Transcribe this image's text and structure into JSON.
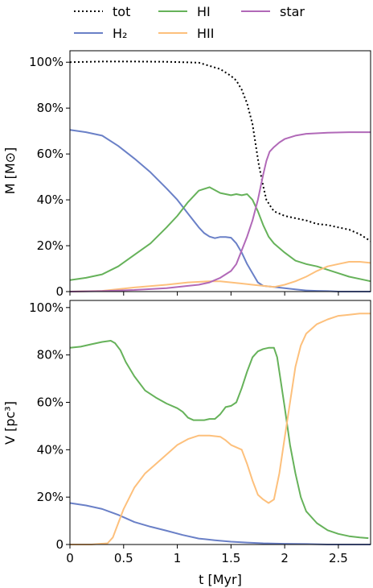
{
  "chart_data": [
    {
      "type": "line",
      "ylabel": "M  [M⊙]",
      "xlim": [
        0,
        2.8
      ],
      "ylim": [
        0,
        105
      ],
      "yticks": [
        "0",
        "20%",
        "40%",
        "60%",
        "80%",
        "100%"
      ],
      "series": [
        {
          "name": "tot",
          "color": "#000000",
          "dash": "dotted",
          "x": [
            0,
            0.3,
            0.6,
            0.9,
            1.2,
            1.4,
            1.5,
            1.55,
            1.6,
            1.65,
            1.7,
            1.73,
            1.76,
            1.8,
            1.83,
            1.87,
            1.9,
            2.0,
            2.1,
            2.2,
            2.3,
            2.4,
            2.5,
            2.6,
            2.7,
            2.8
          ],
          "y": [
            100,
            100.3,
            100.3,
            100.2,
            99.8,
            97,
            94,
            92,
            88,
            82,
            73,
            64,
            55,
            46,
            40,
            37,
            35,
            33,
            32,
            31,
            29.5,
            29,
            28,
            27,
            25,
            22
          ]
        },
        {
          "name": "H2",
          "color": "#6a80c7",
          "x": [
            0,
            0.15,
            0.3,
            0.45,
            0.6,
            0.75,
            0.9,
            1.0,
            1.1,
            1.2,
            1.25,
            1.3,
            1.35,
            1.4,
            1.45,
            1.5,
            1.55,
            1.6,
            1.65,
            1.7,
            1.75,
            1.8,
            1.9,
            2.0,
            2.1,
            2.2,
            2.3,
            2.4,
            2.5,
            2.6,
            2.7,
            2.8
          ],
          "y": [
            70.5,
            69.5,
            68,
            63.5,
            58,
            52,
            45,
            40,
            34,
            28,
            25.5,
            24,
            23.3,
            23.8,
            23.8,
            23.5,
            21,
            17,
            12,
            8,
            4,
            2.5,
            2,
            1.5,
            1,
            0.5,
            0.3,
            0.2,
            0,
            0,
            0,
            0
          ]
        },
        {
          "name": "HI",
          "color": "#66b25a",
          "x": [
            0,
            0.15,
            0.3,
            0.45,
            0.6,
            0.75,
            0.9,
            1.0,
            1.1,
            1.2,
            1.3,
            1.4,
            1.5,
            1.55,
            1.6,
            1.65,
            1.7,
            1.75,
            1.8,
            1.85,
            1.9,
            2.0,
            2.1,
            2.2,
            2.3,
            2.4,
            2.5,
            2.6,
            2.7,
            2.8
          ],
          "y": [
            5,
            6,
            7.5,
            11,
            16,
            21,
            28,
            33,
            39,
            44,
            45.5,
            43,
            42,
            42.5,
            42,
            42.5,
            40,
            35,
            29,
            24,
            21,
            17,
            13.5,
            12,
            11,
            9.5,
            8,
            6.5,
            5.5,
            4.5
          ]
        },
        {
          "name": "HII",
          "color": "#fdc07c",
          "x": [
            0,
            0.3,
            0.6,
            0.9,
            1.1,
            1.3,
            1.4,
            1.5,
            1.6,
            1.7,
            1.8,
            1.9,
            2.0,
            2.1,
            2.2,
            2.3,
            2.4,
            2.5,
            2.6,
            2.7,
            2.8
          ],
          "y": [
            0,
            0.3,
            1.8,
            3,
            4,
            4.5,
            4.5,
            4,
            3.5,
            3,
            2.5,
            2,
            3,
            4.5,
            6.5,
            9,
            11,
            12,
            13,
            13,
            12.5
          ]
        },
        {
          "name": "star",
          "color": "#b169b8",
          "x": [
            0,
            0.3,
            0.6,
            0.9,
            1.1,
            1.2,
            1.3,
            1.4,
            1.5,
            1.55,
            1.6,
            1.65,
            1.7,
            1.75,
            1.8,
            1.83,
            1.86,
            1.9,
            1.95,
            2.0,
            2.1,
            2.2,
            2.4,
            2.6,
            2.8
          ],
          "y": [
            0,
            0.2,
            0.7,
            1.5,
            2.5,
            3,
            4,
            6,
            9,
            12,
            18,
            24,
            31,
            40,
            51,
            57,
            61,
            63,
            65,
            66.5,
            68,
            68.8,
            69.3,
            69.5,
            69.5
          ]
        }
      ]
    },
    {
      "type": "line",
      "xlabel": "t  [Myr]",
      "ylabel": "V  [pc³]",
      "xlim": [
        0,
        2.8
      ],
      "ylim": [
        0,
        103
      ],
      "xticks": [
        "0",
        "0.5",
        "1",
        "1.5",
        "2",
        "2.5"
      ],
      "yticks": [
        "0",
        "20%",
        "40%",
        "60%",
        "80%",
        "100%"
      ],
      "series": [
        {
          "name": "H2",
          "color": "#6a80c7",
          "x": [
            0,
            0.15,
            0.3,
            0.45,
            0.6,
            0.75,
            0.9,
            1.05,
            1.2,
            1.35,
            1.5,
            1.65,
            1.8,
            2.0,
            2.2,
            2.4,
            2.6,
            2.8
          ],
          "y": [
            17.5,
            16.5,
            15,
            12.5,
            9.5,
            7.5,
            5.8,
            4,
            2.5,
            1.8,
            1.2,
            0.8,
            0.5,
            0.3,
            0.2,
            0,
            0,
            0
          ]
        },
        {
          "name": "HI",
          "color": "#66b25a",
          "x": [
            0,
            0.1,
            0.2,
            0.3,
            0.38,
            0.42,
            0.47,
            0.52,
            0.6,
            0.7,
            0.8,
            0.9,
            1.0,
            1.05,
            1.1,
            1.15,
            1.2,
            1.25,
            1.3,
            1.35,
            1.4,
            1.45,
            1.5,
            1.55,
            1.6,
            1.65,
            1.7,
            1.75,
            1.8,
            1.85,
            1.9,
            1.93,
            1.96,
            2.0,
            2.05,
            2.1,
            2.15,
            2.2,
            2.3,
            2.4,
            2.5,
            2.6,
            2.7,
            2.78
          ],
          "y": [
            83,
            83.5,
            84.5,
            85.5,
            86,
            85,
            82,
            77,
            71,
            65,
            62,
            59.5,
            57.5,
            56,
            53.5,
            52.5,
            52.5,
            52.5,
            53,
            53,
            55,
            58,
            58.5,
            60,
            66,
            73,
            79,
            81.5,
            82.5,
            83,
            83,
            79,
            70,
            58,
            42,
            30,
            20,
            14,
            9,
            6,
            4.5,
            3.5,
            3,
            2.7
          ]
        },
        {
          "name": "HII",
          "color": "#fdc07c",
          "x": [
            0,
            0.2,
            0.35,
            0.4,
            0.45,
            0.5,
            0.6,
            0.7,
            0.8,
            0.9,
            1.0,
            1.1,
            1.2,
            1.3,
            1.4,
            1.45,
            1.5,
            1.6,
            1.65,
            1.7,
            1.75,
            1.8,
            1.85,
            1.9,
            1.95,
            2.0,
            2.05,
            2.1,
            2.15,
            2.2,
            2.3,
            2.4,
            2.5,
            2.6,
            2.7,
            2.8
          ],
          "y": [
            0,
            0,
            0.5,
            3,
            9,
            15,
            24,
            30,
            34,
            38,
            42,
            44.5,
            46,
            46,
            45.5,
            44,
            42,
            40,
            34,
            27,
            21,
            19,
            17.5,
            19,
            30,
            45,
            60,
            75,
            84,
            89,
            93,
            95,
            96.5,
            97,
            97.5,
            97.5
          ]
        }
      ]
    }
  ],
  "legend": {
    "placement": "top",
    "items": [
      {
        "label": "tot",
        "color": "#000000",
        "dash": "dotted"
      },
      {
        "label": "H₂",
        "color": "#6a80c7",
        "dash": "solid"
      },
      {
        "label": "HI",
        "color": "#66b25a",
        "dash": "solid"
      },
      {
        "label": "HII",
        "color": "#fdc07c",
        "dash": "solid"
      },
      {
        "label": "star",
        "color": "#b169b8",
        "dash": "solid"
      }
    ]
  }
}
